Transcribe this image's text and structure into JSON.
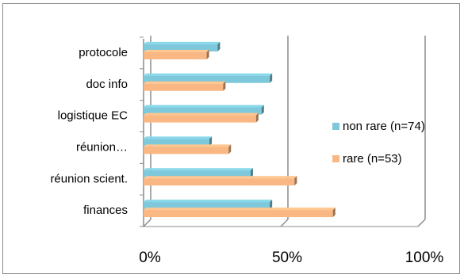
{
  "chart_data": {
    "type": "bar",
    "orientation": "horizontal",
    "categories": [
      "finances",
      "réunion scient.",
      "réunion…",
      "logistique EC",
      "doc info",
      "protocole"
    ],
    "series": [
      {
        "name": "non rare (n=74)",
        "color": "#7dc8da",
        "values": [
          46,
          39,
          24,
          43,
          46,
          27
        ]
      },
      {
        "name": "rare (n=53)",
        "color": "#f9b784",
        "values": [
          69,
          55,
          31,
          41,
          29,
          23
        ]
      }
    ],
    "x_ticks": [
      "0%",
      "50%",
      "100%"
    ],
    "xlim": [
      0,
      100
    ],
    "legend": "right",
    "grid": true,
    "style_3d": true
  }
}
